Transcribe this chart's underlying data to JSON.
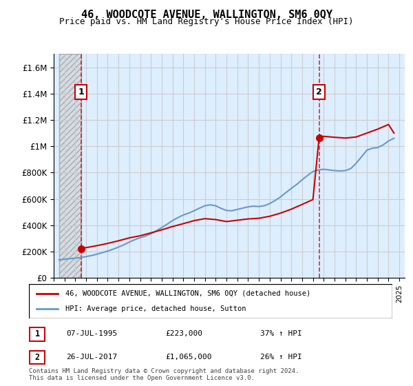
{
  "title": "46, WOODCOTE AVENUE, WALLINGTON, SM6 0QY",
  "subtitle": "Price paid vs. HM Land Registry's House Price Index (HPI)",
  "ylabel": "",
  "xlim_start": 1993.5,
  "xlim_end": 2025.5,
  "ylim": [
    0,
    1700000
  ],
  "yticks": [
    0,
    200000,
    400000,
    600000,
    800000,
    1000000,
    1200000,
    1400000,
    1600000
  ],
  "ytick_labels": [
    "£0",
    "£200K",
    "£400K",
    "£600K",
    "£800K",
    "£1M",
    "£1.2M",
    "£1.4M",
    "£1.6M"
  ],
  "xticks": [
    1993,
    1994,
    1995,
    1996,
    1997,
    1998,
    1999,
    2000,
    2001,
    2002,
    2003,
    2004,
    2005,
    2006,
    2007,
    2008,
    2009,
    2010,
    2011,
    2012,
    2013,
    2014,
    2015,
    2016,
    2017,
    2018,
    2019,
    2020,
    2021,
    2022,
    2023,
    2024,
    2025
  ],
  "sale1_year": 1995.52,
  "sale1_value": 223000,
  "sale1_label": "1",
  "sale1_date": "07-JUL-1995",
  "sale1_price": "£223,000",
  "sale1_hpi": "37% ↑ HPI",
  "sale2_year": 2017.57,
  "sale2_value": 1065000,
  "sale2_label": "2",
  "sale2_date": "26-JUL-2017",
  "sale2_price": "£1,065,000",
  "sale2_hpi": "26% ↑ HPI",
  "red_line_color": "#cc0000",
  "blue_line_color": "#6699cc",
  "hatch_color": "#bbbbbb",
  "grid_color": "#cccccc",
  "bg_color": "#ddeeff",
  "hatch_bg_color": "#cccccc",
  "legend_line1": "46, WOODCOTE AVENUE, WALLINGTON, SM6 0QY (detached house)",
  "legend_line2": "HPI: Average price, detached house, Sutton",
  "footnote": "Contains HM Land Registry data © Crown copyright and database right 2024.\nThis data is licensed under the Open Government Licence v3.0.",
  "hpi_data_x": [
    1993.5,
    1994,
    1994.5,
    1995,
    1995.5,
    1996,
    1996.5,
    1997,
    1997.5,
    1998,
    1998.5,
    1999,
    1999.5,
    2000,
    2000.5,
    2001,
    2001.5,
    2002,
    2002.5,
    2003,
    2003.5,
    2004,
    2004.5,
    2005,
    2005.5,
    2006,
    2006.5,
    2007,
    2007.5,
    2008,
    2008.5,
    2009,
    2009.5,
    2010,
    2010.5,
    2011,
    2011.5,
    2012,
    2012.5,
    2013,
    2013.5,
    2014,
    2014.5,
    2015,
    2015.5,
    2016,
    2016.5,
    2017,
    2017.5,
    2018,
    2018.5,
    2019,
    2019.5,
    2020,
    2020.5,
    2021,
    2021.5,
    2022,
    2022.5,
    2023,
    2023.5,
    2024,
    2024.5
  ],
  "hpi_data_y": [
    138000,
    142000,
    146000,
    150000,
    155000,
    162000,
    170000,
    180000,
    192000,
    204000,
    218000,
    234000,
    252000,
    272000,
    290000,
    305000,
    318000,
    335000,
    358000,
    382000,
    408000,
    435000,
    458000,
    478000,
    492000,
    510000,
    530000,
    548000,
    555000,
    548000,
    528000,
    512000,
    510000,
    520000,
    530000,
    540000,
    545000,
    542000,
    548000,
    565000,
    588000,
    615000,
    648000,
    680000,
    710000,
    745000,
    778000,
    808000,
    820000,
    825000,
    820000,
    815000,
    812000,
    815000,
    830000,
    870000,
    920000,
    970000,
    985000,
    990000,
    1010000,
    1040000,
    1060000
  ],
  "price_line_x": [
    1995.52,
    1995.6,
    1996,
    1997,
    1998,
    1999,
    2000,
    2001,
    2002,
    2003,
    2004,
    2005,
    2006,
    2007,
    2008,
    2009,
    2010,
    2011,
    2012,
    2013,
    2014,
    2015,
    2016,
    2017,
    2017.57,
    2017.6,
    2018,
    2019,
    2020,
    2021,
    2022,
    2023,
    2024,
    2024.5
  ],
  "price_line_y": [
    223000,
    225000,
    230000,
    245000,
    262000,
    282000,
    304000,
    320000,
    342000,
    365000,
    390000,
    412000,
    435000,
    450000,
    443000,
    428000,
    438000,
    448000,
    453000,
    468000,
    492000,
    522000,
    558000,
    595000,
    1065000,
    1070000,
    1075000,
    1068000,
    1062000,
    1070000,
    1100000,
    1130000,
    1165000,
    1100000
  ]
}
